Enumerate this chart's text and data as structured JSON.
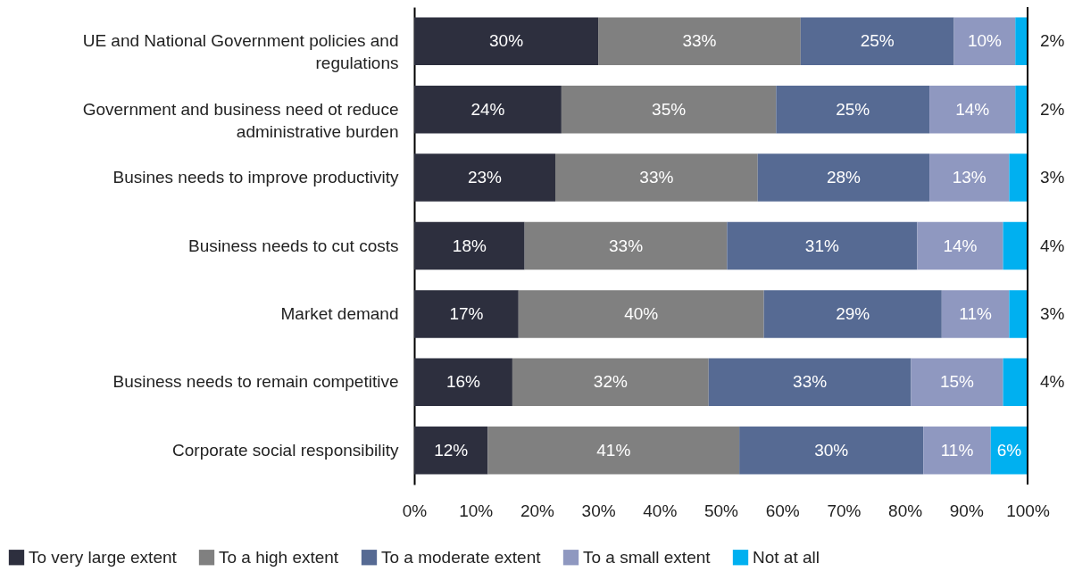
{
  "chart_data": {
    "type": "bar",
    "orientation": "horizontal",
    "stacked": true,
    "grid": false,
    "legend": "bottom",
    "categories": [
      "UE and National Government policies and regulations",
      "Government and business need ot reduce administrative burden",
      "Busines needs to improve productivity",
      "Business needs to cut costs",
      "Market demand",
      "Business needs to remain competitive",
      "Corporate social responsibility"
    ],
    "series": [
      {
        "name": "To very large extent",
        "color": "#2d2f3e",
        "values": [
          30,
          24,
          23,
          18,
          17,
          16,
          12
        ],
        "value_labels": [
          "30%",
          "24%",
          "23%",
          "18%",
          "17%",
          "16%",
          "12%"
        ]
      },
      {
        "name": "To a high extent",
        "color": "#808080",
        "values": [
          33,
          35,
          33,
          33,
          40,
          32,
          41
        ],
        "value_labels": [
          "33%",
          "35%",
          "33%",
          "33%",
          "40%",
          "32%",
          "41%"
        ]
      },
      {
        "name": "To a moderate extent",
        "color": "#566a93",
        "values": [
          25,
          25,
          28,
          31,
          29,
          33,
          30
        ],
        "value_labels": [
          "25%",
          "25%",
          "28%",
          "31%",
          "29%",
          "33%",
          "30%"
        ]
      },
      {
        "name": "To a small extent",
        "color": "#8f98c0",
        "values": [
          10,
          14,
          13,
          14,
          11,
          15,
          11
        ],
        "value_labels": [
          "10%",
          "14%",
          "13%",
          "14%",
          "11%",
          "15%",
          "11%"
        ]
      },
      {
        "name": "Not at all",
        "color": "#00b0f0",
        "values": [
          2,
          2,
          3,
          4,
          3,
          4,
          6
        ],
        "value_labels": [
          "2%",
          "2%",
          "3%",
          "4%",
          "3%",
          "4%",
          "6%"
        ]
      }
    ],
    "xlim": [
      0,
      100
    ],
    "xticks": [
      {
        "value": 0,
        "label": "0%"
      },
      {
        "value": 10,
        "label": "10%"
      },
      {
        "value": 20,
        "label": "20%"
      },
      {
        "value": 30,
        "label": "30%"
      },
      {
        "value": 40,
        "label": "40%"
      },
      {
        "value": 50,
        "label": "50%"
      },
      {
        "value": 60,
        "label": "60%"
      },
      {
        "value": 70,
        "label": "70%"
      },
      {
        "value": 80,
        "label": "80%"
      },
      {
        "value": 90,
        "label": "90%"
      },
      {
        "value": 100,
        "label": "100%"
      }
    ],
    "ref_lines": [
      {
        "axis": "x",
        "value": 100
      }
    ]
  }
}
